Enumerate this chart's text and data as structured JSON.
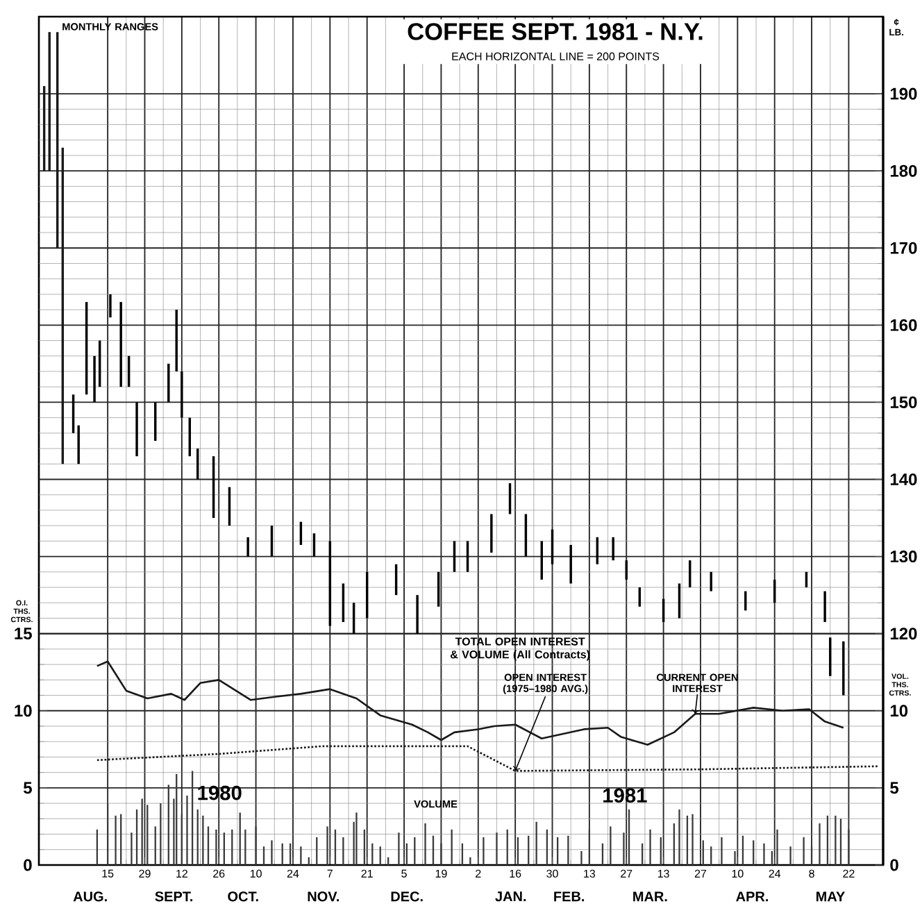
{
  "chart_data": {
    "type": "bar",
    "title": "COFFEE SEPT. 1981 - N.Y.",
    "subtitle": "EACH HORIZONTAL LINE = 200 POINTS",
    "ylabel": "O.I. THS. CTRS.",
    "y2label": "¢ LB.",
    "y3label": "VOL. THS. CTRS.",
    "xlim": [
      "1980-07-20",
      "1981-06-04"
    ],
    "xticks": [
      {
        "value": "1980-08-15",
        "label": "15"
      },
      {
        "value": "1980-08-29",
        "label": "29"
      },
      {
        "value": "1980-09-12",
        "label": "12"
      },
      {
        "value": "1980-09-26",
        "label": "26"
      },
      {
        "value": "1980-10-10",
        "label": "10"
      },
      {
        "value": "1980-10-24",
        "label": "24"
      },
      {
        "value": "1980-11-07",
        "label": "7"
      },
      {
        "value": "1980-11-21",
        "label": "21"
      },
      {
        "value": "1980-12-05",
        "label": "5"
      },
      {
        "value": "1980-12-19",
        "label": "19"
      },
      {
        "value": "1981-01-02",
        "label": "2"
      },
      {
        "value": "1981-01-16",
        "label": "16"
      },
      {
        "value": "1981-01-30",
        "label": "30"
      },
      {
        "value": "1981-02-13",
        "label": "13"
      },
      {
        "value": "1981-02-27",
        "label": "27"
      },
      {
        "value": "1981-03-13",
        "label": "13"
      },
      {
        "value": "1981-03-27",
        "label": "27"
      },
      {
        "value": "1981-04-10",
        "label": "10"
      },
      {
        "value": "1981-04-24",
        "label": "24"
      },
      {
        "value": "1981-05-08",
        "label": "8"
      },
      {
        "value": "1981-05-22",
        "label": "22"
      }
    ],
    "ylim": [
      0,
      55
    ],
    "yticks": [
      0,
      5,
      10,
      15
    ],
    "y2lim": [
      90,
      200
    ],
    "y2ticks": [
      120,
      130,
      140,
      150,
      160,
      170,
      180,
      190
    ],
    "y3lim": [
      0,
      55
    ],
    "y3ticks": [
      0,
      5,
      10
    ],
    "grid": true,
    "marker": "none",
    "annotations": [
      "TOTAL OPEN INTEREST & VOLUME (All Contracts)",
      "1980",
      "1981",
      "AUG.",
      "SEPT.",
      "OCT.",
      "NOV.",
      "DEC.",
      "JAN.",
      "FEB.",
      "MAR.",
      "APR.",
      "MAY"
    ],
    "series": [
      {
        "axis": "y2",
        "color": "#000000",
        "x": [
          "1980-08-02",
          "1980-08-04",
          "1980-08-07",
          "1980-08-10",
          "1980-08-12",
          "1980-08-16",
          "1980-08-20",
          "1980-08-23",
          "1980-08-26",
          "1980-09-02",
          "1980-09-07",
          "1980-09-10",
          "1980-09-12",
          "1980-09-15",
          "1980-09-18",
          "1980-09-24",
          "1980-09-30",
          "1980-10-07",
          "1980-10-16",
          "1980-10-27",
          "1980-11-01",
          "1980-11-07",
          "1980-11-12",
          "1980-11-16",
          "1980-11-21",
          "1980-12-02",
          "1980-12-10",
          "1980-12-18",
          "1980-12-24",
          "1980-12-29",
          "1981-01-07",
          "1981-01-14",
          "1981-01-20",
          "1981-01-26",
          "1981-01-30",
          "1981-02-06",
          "1981-02-16",
          "1981-02-22",
          "1981-02-27",
          "1981-03-04",
          "1981-03-13",
          "1981-03-19",
          "1981-03-23",
          "1981-03-31",
          "1981-04-13",
          "1981-04-24",
          "1981-05-06",
          "1981-05-13",
          "1981-05-15",
          "1981-05-20"
        ],
        "base": [
          146,
          142,
          151,
          150,
          152,
          161,
          152,
          152,
          143,
          145,
          150,
          154,
          148,
          143,
          140,
          135,
          134,
          130,
          130,
          131.5,
          130,
          121,
          121.5,
          120,
          122,
          125,
          120,
          123.5,
          128,
          128,
          130.5,
          135.5,
          130,
          127,
          129,
          126.5,
          129,
          129.5,
          127,
          123.5,
          121.5,
          122,
          126,
          125.5,
          123,
          124,
          126,
          121.5,
          114.5,
          112
        ],
        "values": [
          5,
          5,
          12,
          6,
          6,
          3,
          11,
          4,
          7,
          5,
          5,
          8,
          6,
          5,
          4,
          8,
          5,
          2.5,
          4,
          3,
          3,
          11,
          5,
          4,
          6,
          4,
          5,
          4.5,
          4,
          4,
          5,
          4,
          5.5,
          5,
          4.5,
          5,
          3.5,
          3,
          2.5,
          2.5,
          3,
          4.5,
          3.5,
          2.5,
          2.5,
          3,
          2,
          4,
          5,
          7
        ]
      },
      {
        "axis": "y2",
        "name": "MONTHLY RANGES",
        "color": "#1a1a1a",
        "x": [
          "1980-07-22",
          "1980-07-24",
          "1980-07-27",
          "1980-07-29"
        ],
        "base": [
          180,
          180,
          170,
          142
        ],
        "values": [
          11,
          18,
          28,
          41
        ]
      },
      {
        "type": "line",
        "axis": "y",
        "name": "CURRENT OPEN INTEREST",
        "color": "#1a1a1a",
        "line_style": "solid",
        "x": [
          "1980-08-11",
          "1980-08-15",
          "1980-08-22",
          "1980-08-30",
          "1980-09-08",
          "1980-09-13",
          "1980-09-19",
          "1980-09-26",
          "1980-10-08",
          "1980-10-17",
          "1980-10-27",
          "1980-11-07",
          "1980-11-17",
          "1980-11-26",
          "1980-12-08",
          "1980-12-14",
          "1980-12-19",
          "1980-12-24",
          "1981-01-02",
          "1981-01-08",
          "1981-01-16",
          "1981-01-26",
          "1981-02-11",
          "1981-02-20",
          "1981-02-25",
          "1981-03-07",
          "1981-03-17",
          "1981-03-25",
          "1981-04-03",
          "1981-04-16",
          "1981-04-27",
          "1981-05-07",
          "1981-05-13",
          "1981-05-20"
        ],
        "values": [
          12.9,
          13.2,
          11.3,
          10.8,
          11.1,
          10.7,
          11.8,
          12.0,
          10.7,
          10.9,
          11.1,
          11.4,
          10.8,
          9.7,
          9.1,
          8.6,
          8.1,
          8.6,
          8.8,
          9.0,
          9.1,
          8.2,
          8.8,
          8.9,
          8.3,
          7.8,
          8.6,
          9.8,
          9.8,
          10.2,
          10.0,
          10.1,
          9.3,
          8.9
        ]
      },
      {
        "type": "line",
        "axis": "y",
        "name": "OPEN INTEREST (1975–1980 AVG.)",
        "color": "#1a1a1a",
        "line_style": "dotted",
        "x": [
          "1980-08-11",
          "1980-09-26",
          "1980-11-04",
          "1980-12-29",
          "1981-01-16",
          "1981-03-27",
          "1981-06-02"
        ],
        "values": [
          6.8,
          7.2,
          7.7,
          7.7,
          6.1,
          6.2,
          6.4
        ]
      },
      {
        "axis": "y3",
        "name": "VOLUME",
        "color": "#3a3a3a",
        "x": [
          "1980-08-11",
          "1980-08-15",
          "1980-08-18",
          "1980-08-20",
          "1980-08-24",
          "1980-08-26",
          "1980-08-28",
          "1980-08-30",
          "1980-09-02",
          "1980-09-04",
          "1980-09-07",
          "1980-09-09",
          "1980-09-10",
          "1980-09-12",
          "1980-09-14",
          "1980-09-16",
          "1980-09-18",
          "1980-09-20",
          "1980-09-22",
          "1980-09-25",
          "1980-09-28",
          "1980-10-01",
          "1980-10-04",
          "1980-10-06",
          "1980-10-10",
          "1980-10-13",
          "1980-10-16",
          "1980-10-20",
          "1980-10-23",
          "1980-10-27",
          "1980-10-30",
          "1980-11-02",
          "1980-11-06",
          "1980-11-09",
          "1980-11-12",
          "1980-11-16",
          "1980-11-17",
          "1980-11-20",
          "1980-11-23",
          "1980-11-26",
          "1980-11-29",
          "1980-12-03",
          "1980-12-06",
          "1980-12-09",
          "1980-12-13",
          "1980-12-16",
          "1980-12-19",
          "1980-12-23",
          "1980-12-27",
          "1980-12-30",
          "1981-01-04",
          "1981-01-09",
          "1981-01-13",
          "1981-01-17",
          "1981-01-21",
          "1981-01-24",
          "1981-01-28",
          "1981-02-01",
          "1981-02-05",
          "1981-02-10",
          "1981-02-13",
          "1981-02-18",
          "1981-02-21",
          "1981-02-26",
          "1981-02-28",
          "1981-03-05",
          "1981-03-08",
          "1981-03-12",
          "1981-03-17",
          "1981-03-19",
          "1981-03-22",
          "1981-03-24",
          "1981-03-28",
          "1981-03-31",
          "1981-04-04",
          "1981-04-09",
          "1981-04-12",
          "1981-04-16",
          "1981-04-20",
          "1981-04-23",
          "1981-04-25",
          "1981-04-30",
          "1981-05-05",
          "1981-05-08",
          "1981-05-11",
          "1981-05-14",
          "1981-05-17",
          "1981-05-19",
          "1981-05-22"
        ],
        "values": [
          2.3,
          4.0,
          3.2,
          3.3,
          2.1,
          3.6,
          4.3,
          3.9,
          2.5,
          4.0,
          5.2,
          4.3,
          5.9,
          3.3,
          4.5,
          6.1,
          3.6,
          3.2,
          2.5,
          2.3,
          2.1,
          2.3,
          3.4,
          2.3,
          2.5,
          1.2,
          1.6,
          1.4,
          1.4,
          1.2,
          0.5,
          1.8,
          2.5,
          2.3,
          1.8,
          2.8,
          3.4,
          2.3,
          1.4,
          1.2,
          0.5,
          2.1,
          1.4,
          1.8,
          2.7,
          1.9,
          1.4,
          2.3,
          1.4,
          0.5,
          1.8,
          2.1,
          2.3,
          1.8,
          1.9,
          2.8,
          2.3,
          1.8,
          1.9,
          0.9,
          2.3,
          1.4,
          2.5,
          2.1,
          3.6,
          1.4,
          2.3,
          1.8,
          2.7,
          3.6,
          3.2,
          3.3,
          1.6,
          1.2,
          1.8,
          0.9,
          1.9,
          1.6,
          1.4,
          0.9,
          2.3,
          1.2,
          1.8,
          1.2,
          2.7,
          3.2,
          3.2,
          3.0,
          2.3
        ]
      }
    ]
  }
}
